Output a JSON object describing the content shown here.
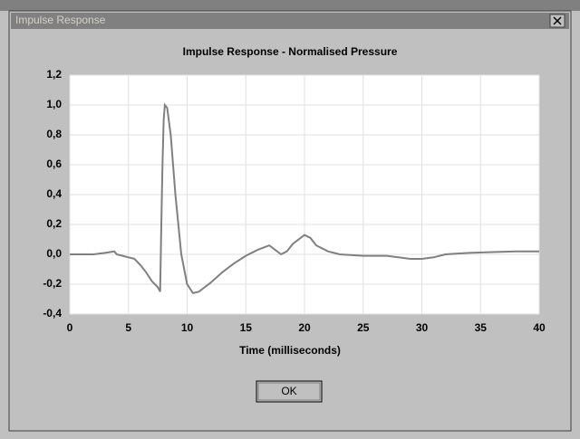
{
  "window": {
    "title": "Impulse Response",
    "button": "OK"
  },
  "chart_data": {
    "type": "line",
    "title": "Impulse Response - Normalised Pressure",
    "xlabel": "Time (milliseconds)",
    "x": [
      0,
      1,
      2,
      3,
      3.8,
      4,
      4.5,
      5,
      5.5,
      6,
      6.5,
      7,
      7.5,
      7.7,
      7.8,
      7.9,
      8.0,
      8.1,
      8.3,
      8.6,
      9,
      9.5,
      10,
      10.5,
      11,
      12,
      13,
      14,
      15,
      16,
      17,
      17.5,
      18,
      18.5,
      19,
      20,
      20.5,
      21,
      22,
      23,
      25,
      27,
      28,
      29,
      30,
      31,
      32,
      34,
      36,
      38,
      40
    ],
    "values": [
      0,
      0,
      0,
      0.01,
      0.02,
      0,
      -0.01,
      -0.02,
      -0.03,
      -0.07,
      -0.12,
      -0.18,
      -0.22,
      -0.25,
      0.2,
      0.6,
      0.9,
      1.0,
      0.98,
      0.8,
      0.4,
      0,
      -0.2,
      -0.26,
      -0.25,
      -0.19,
      -0.12,
      -0.06,
      -0.01,
      0.03,
      0.06,
      0.03,
      0,
      0.02,
      0.07,
      0.13,
      0.11,
      0.06,
      0.02,
      0,
      -0.01,
      -0.01,
      -0.02,
      -0.03,
      -0.03,
      -0.02,
      0,
      0.01,
      0.015,
      0.02,
      0.02
    ],
    "color": "#808080",
    "xlim": [
      0,
      40
    ],
    "xticks": [
      0,
      5,
      10,
      15,
      20,
      25,
      30,
      35,
      40
    ],
    "ylim": [
      -0.4,
      1.2
    ],
    "yticks": [
      {
        "value": -0.4,
        "label": "-0,4"
      },
      {
        "value": -0.2,
        "label": "-0,2"
      },
      {
        "value": 0,
        "label": "0,0"
      },
      {
        "value": 0.2,
        "label": "0,2"
      },
      {
        "value": 0.4,
        "label": "0,4"
      },
      {
        "value": 0.6,
        "label": "0,6"
      },
      {
        "value": 0.8,
        "label": "0,8"
      },
      {
        "value": 1.0,
        "label": "1,0"
      },
      {
        "value": 1.2,
        "label": "1,2"
      }
    ],
    "grid": true
  }
}
